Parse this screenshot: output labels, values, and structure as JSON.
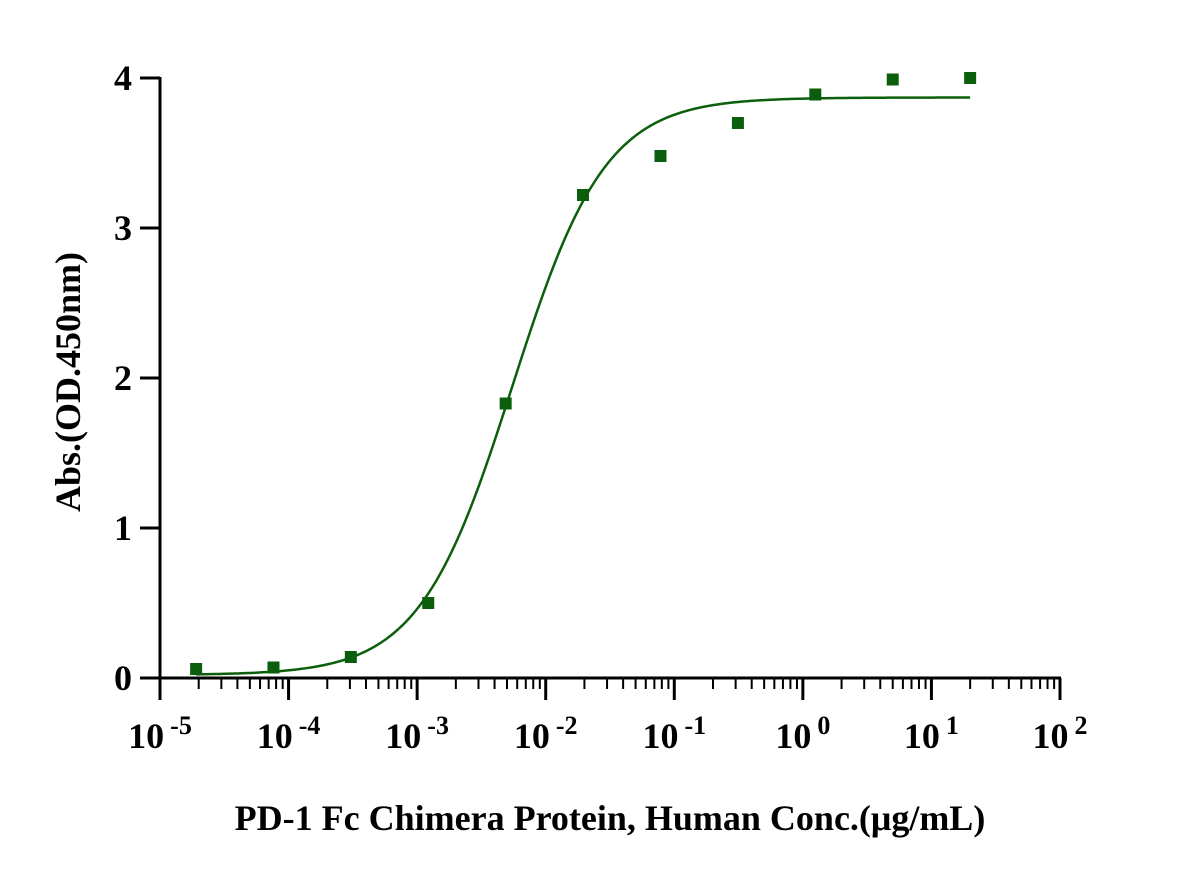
{
  "chart_data": {
    "type": "scatter",
    "title": "",
    "xlabel": "PD-1 Fc Chimera Protein, Human  Conc.(μg/mL)",
    "ylabel": "Abs.(OD.450nm)",
    "xscale": "log",
    "xlim": [
      1e-05,
      100
    ],
    "ylim": [
      0,
      4
    ],
    "x_ticks": [
      {
        "base": "10",
        "exp": "-5",
        "value": 1e-05
      },
      {
        "base": "10",
        "exp": "-4",
        "value": 0.0001
      },
      {
        "base": "10",
        "exp": "-3",
        "value": 0.001
      },
      {
        "base": "10",
        "exp": "-2",
        "value": 0.01
      },
      {
        "base": "10",
        "exp": "-1",
        "value": 0.1
      },
      {
        "base": "10",
        "exp": "0",
        "value": 1
      },
      {
        "base": "10",
        "exp": "1",
        "value": 10
      },
      {
        "base": "10",
        "exp": "2",
        "value": 100
      }
    ],
    "y_ticks": [
      {
        "label": "0",
        "value": 0
      },
      {
        "label": "1",
        "value": 1
      },
      {
        "label": "2",
        "value": 2
      },
      {
        "label": "3",
        "value": 3
      },
      {
        "label": "4",
        "value": 4
      }
    ],
    "series": [
      {
        "name": "PD-1 Fc Chimera Protein, Human",
        "color": "#0b5e0b",
        "marker": "square",
        "x": [
          1.91e-05,
          7.63e-05,
          0.000305,
          0.00122,
          0.00488,
          0.0195,
          0.0781,
          0.3125,
          1.25,
          5,
          20
        ],
        "y": [
          0.06,
          0.07,
          0.14,
          0.5,
          1.83,
          3.22,
          3.48,
          3.7,
          3.89,
          3.99,
          4.0
        ]
      }
    ],
    "fit": {
      "type": "4PL",
      "bottom": 0.02,
      "top": 3.87,
      "ec50": 0.0055,
      "hill": 1.2,
      "x_range": [
        1.91e-05,
        20
      ],
      "color": "#0b5e0b"
    },
    "grid": false,
    "legend": "none"
  }
}
